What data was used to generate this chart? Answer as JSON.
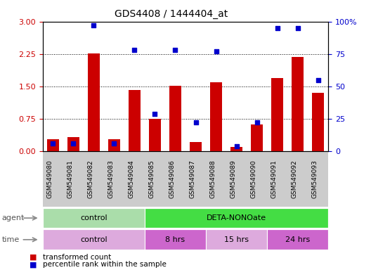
{
  "title": "GDS4408 / 1444404_at",
  "samples": [
    "GSM549080",
    "GSM549081",
    "GSM549082",
    "GSM549083",
    "GSM549084",
    "GSM549085",
    "GSM549086",
    "GSM549087",
    "GSM549088",
    "GSM549089",
    "GSM549090",
    "GSM549091",
    "GSM549092",
    "GSM549093"
  ],
  "red_bars": [
    0.28,
    0.32,
    2.27,
    0.28,
    1.42,
    0.75,
    1.52,
    0.22,
    1.6,
    0.1,
    0.62,
    1.7,
    2.18,
    1.35
  ],
  "blue_dots_pct": [
    6,
    6,
    97,
    6,
    78,
    29,
    78,
    22,
    77,
    4,
    22,
    95,
    95,
    55
  ],
  "left_ylim": [
    0,
    3.0
  ],
  "right_ylim": [
    0,
    100
  ],
  "left_yticks": [
    0,
    0.75,
    1.5,
    2.25,
    3.0
  ],
  "right_yticks": [
    0,
    25,
    50,
    75,
    100
  ],
  "right_yticklabels": [
    "0",
    "25",
    "50",
    "75",
    "100%"
  ],
  "agent_labels": [
    {
      "text": "control",
      "start": 0,
      "end": 4,
      "color": "#aaddaa"
    },
    {
      "text": "DETA-NONOate",
      "start": 5,
      "end": 13,
      "color": "#44dd44"
    }
  ],
  "time_labels": [
    {
      "text": "control",
      "start": 0,
      "end": 4,
      "color": "#ddaadd"
    },
    {
      "text": "8 hrs",
      "start": 5,
      "end": 7,
      "color": "#cc66cc"
    },
    {
      "text": "15 hrs",
      "start": 8,
      "end": 10,
      "color": "#ddaadd"
    },
    {
      "text": "24 hrs",
      "start": 11,
      "end": 13,
      "color": "#cc66cc"
    }
  ],
  "bar_color": "#cc0000",
  "dot_color": "#0000cc",
  "axis_color_left": "#cc0000",
  "axis_color_right": "#0000cc",
  "grid_yticks": [
    0.75,
    1.5,
    2.25
  ],
  "grey_bg": "#cccccc"
}
